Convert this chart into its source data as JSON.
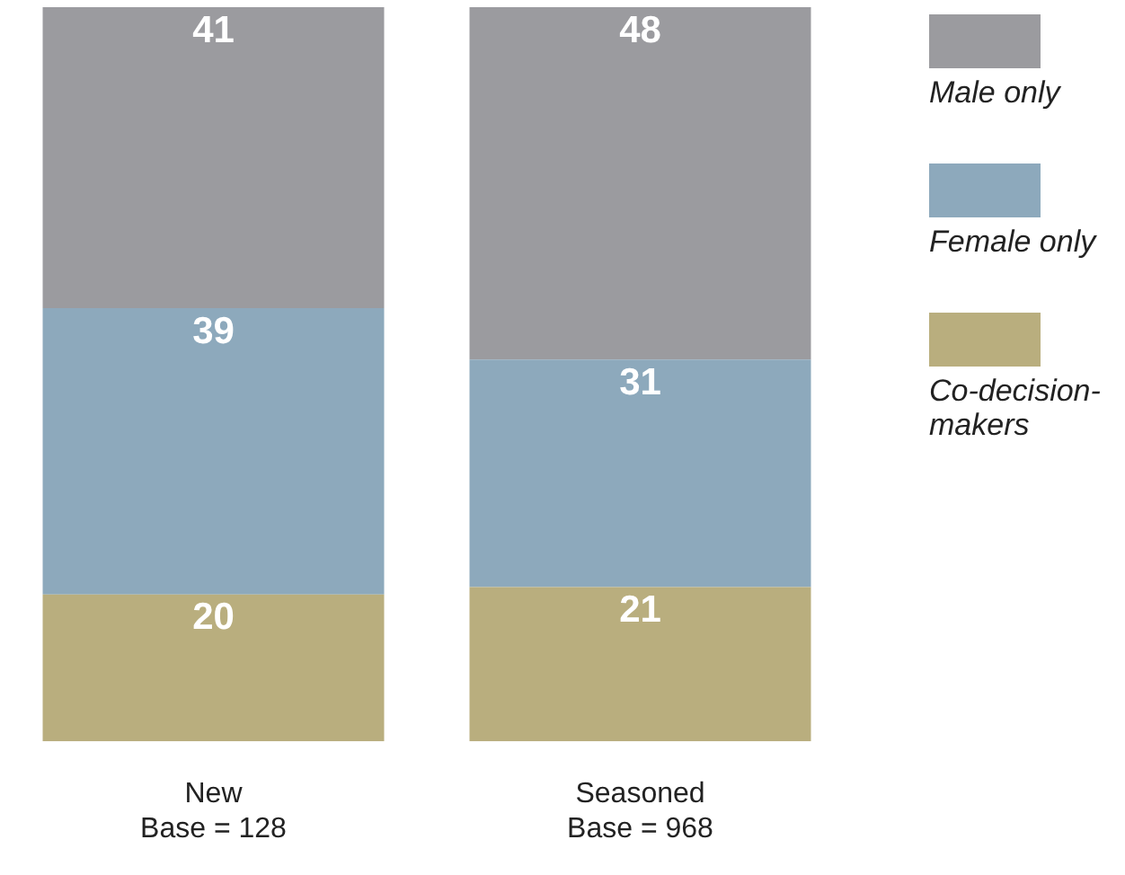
{
  "chart_data": {
    "type": "bar",
    "stacked": true,
    "data_labels": true,
    "legend": "right",
    "categories": [
      "New\nBase = 128",
      "Seasoned\nBase = 968"
    ],
    "series": [
      {
        "name": "Co-decision-makers",
        "color": "#b9ae7e",
        "values": [
          20,
          21
        ]
      },
      {
        "name": "Female only",
        "color": "#8da9bc",
        "values": [
          39,
          31
        ]
      },
      {
        "name": "Male only",
        "color": "#9b9b9f",
        "values": [
          41,
          48
        ]
      }
    ]
  }
}
